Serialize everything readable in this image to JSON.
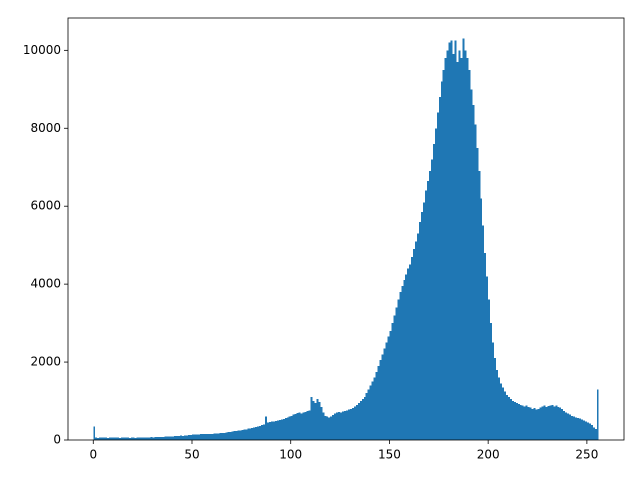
{
  "chart_data": {
    "type": "histogram",
    "color": "#1f77b4",
    "bins": [
      0,
      1,
      2,
      3,
      4,
      5,
      6,
      7,
      8,
      9,
      10,
      11,
      12,
      13,
      14,
      15,
      16,
      17,
      18,
      19,
      20,
      21,
      22,
      23,
      24,
      25,
      26,
      27,
      28,
      29,
      30,
      31,
      32,
      33,
      34,
      35,
      36,
      37,
      38,
      39,
      40,
      41,
      42,
      43,
      44,
      45,
      46,
      47,
      48,
      49,
      50,
      51,
      52,
      53,
      54,
      55,
      56,
      57,
      58,
      59,
      60,
      61,
      62,
      63,
      64,
      65,
      66,
      67,
      68,
      69,
      70,
      71,
      72,
      73,
      74,
      75,
      76,
      77,
      78,
      79,
      80,
      81,
      82,
      83,
      84,
      85,
      86,
      87,
      88,
      89,
      90,
      91,
      92,
      93,
      94,
      95,
      96,
      97,
      98,
      99,
      100,
      101,
      102,
      103,
      104,
      105,
      106,
      107,
      108,
      109,
      110,
      111,
      112,
      113,
      114,
      115,
      116,
      117,
      118,
      119,
      120,
      121,
      122,
      123,
      124,
      125,
      126,
      127,
      128,
      129,
      130,
      131,
      132,
      133,
      134,
      135,
      136,
      137,
      138,
      139,
      140,
      141,
      142,
      143,
      144,
      145,
      146,
      147,
      148,
      149,
      150,
      151,
      152,
      153,
      154,
      155,
      156,
      157,
      158,
      159,
      160,
      161,
      162,
      163,
      164,
      165,
      166,
      167,
      168,
      169,
      170,
      171,
      172,
      173,
      174,
      175,
      176,
      177,
      178,
      179,
      180,
      181,
      182,
      183,
      184,
      185,
      186,
      187,
      188,
      189,
      190,
      191,
      192,
      193,
      194,
      195,
      196,
      197,
      198,
      199,
      200,
      201,
      202,
      203,
      204,
      205,
      206,
      207,
      208,
      209,
      210,
      211,
      212,
      213,
      214,
      215,
      216,
      217,
      218,
      219,
      220,
      221,
      222,
      223,
      224,
      225,
      226,
      227,
      228,
      229,
      230,
      231,
      232,
      233,
      234,
      235,
      236,
      237,
      238,
      239,
      240,
      241,
      242,
      243,
      244,
      245,
      246,
      247,
      248,
      249,
      250,
      251,
      252,
      253,
      254,
      255,
      256
    ],
    "values": [
      350,
      60,
      55,
      60,
      58,
      62,
      60,
      55,
      58,
      60,
      58,
      60,
      62,
      55,
      58,
      60,
      62,
      58,
      55,
      60,
      58,
      55,
      60,
      62,
      58,
      65,
      62,
      68,
      70,
      72,
      70,
      75,
      72,
      78,
      80,
      82,
      85,
      88,
      90,
      95,
      95,
      100,
      98,
      105,
      110,
      108,
      115,
      120,
      125,
      130,
      135,
      140,
      145,
      140,
      150,
      148,
      155,
      150,
      158,
      160,
      160,
      165,
      170,
      168,
      175,
      180,
      185,
      190,
      200,
      210,
      215,
      225,
      230,
      240,
      250,
      255,
      265,
      275,
      290,
      300,
      310,
      325,
      340,
      350,
      365,
      380,
      400,
      600,
      450,
      460,
      470,
      480,
      490,
      500,
      510,
      530,
      540,
      560,
      580,
      600,
      620,
      650,
      670,
      690,
      700,
      680,
      700,
      720,
      740,
      760,
      1100,
      1000,
      950,
      1050,
      980,
      850,
      700,
      620,
      600,
      580,
      600,
      640,
      680,
      700,
      720,
      710,
      730,
      740,
      760,
      780,
      800,
      820,
      860,
      900,
      950,
      1000,
      1050,
      1100,
      1200,
      1300,
      1400,
      1500,
      1600,
      1750,
      1900,
      2050,
      2200,
      2350,
      2500,
      2650,
      2800,
      3000,
      3200,
      3400,
      3600,
      3800,
      3950,
      4100,
      4250,
      4400,
      4500,
      4700,
      4900,
      5100,
      5300,
      5600,
      5850,
      6100,
      6400,
      6650,
      6900,
      7200,
      7600,
      8000,
      8400,
      8800,
      9200,
      9500,
      9800,
      10000,
      10200,
      10250,
      9900,
      10250,
      9700,
      10000,
      9800,
      10300,
      10000,
      9800,
      9500,
      9000,
      8600,
      8100,
      7500,
      6900,
      6200,
      5500,
      4800,
      4200,
      3600,
      3000,
      2500,
      2100,
      1800,
      1600,
      1450,
      1350,
      1250,
      1150,
      1100,
      1050,
      1000,
      980,
      950,
      920,
      900,
      880,
      860,
      880,
      850,
      830,
      800,
      820,
      780,
      800,
      840,
      860,
      880,
      850,
      870,
      880,
      900,
      860,
      880,
      850,
      830,
      800,
      750,
      700,
      680,
      650,
      620,
      600,
      580,
      560,
      550,
      520,
      500,
      480,
      450,
      420,
      380,
      320,
      280,
      1300
    ],
    "xlim": [
      -12.8,
      268.8
    ],
    "xticks": [
      0,
      50,
      100,
      150,
      200,
      250
    ],
    "ylim": [
      0,
      10830
    ],
    "yticks": [
      0,
      2000,
      4000,
      6000,
      8000,
      10000
    ]
  }
}
